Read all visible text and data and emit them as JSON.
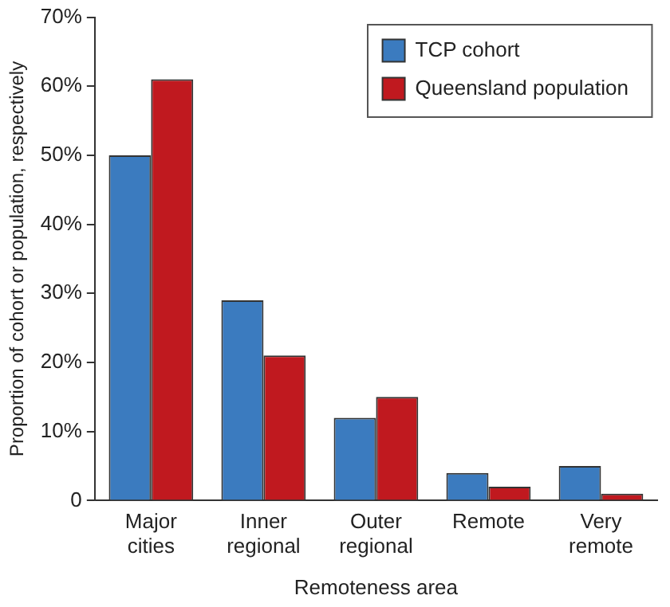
{
  "chart_data": {
    "type": "bar",
    "xlabel": "Remoteness area",
    "ylabel": "Proportion of cohort or population, respectively",
    "categories": [
      "Major cities",
      "Inner regional",
      "Outer regional",
      "Remote",
      "Very remote"
    ],
    "series": [
      {
        "name": "TCP cohort",
        "color": "#3b7bbf",
        "values": [
          50,
          29,
          12,
          4,
          5
        ]
      },
      {
        "name": "Queensland population",
        "color": "#c0191f",
        "values": [
          61,
          21,
          15,
          2,
          1
        ]
      }
    ],
    "ylim": [
      0,
      70
    ],
    "yticks": [
      0,
      {
        "value": 10,
        "label": "10%"
      },
      {
        "value": 20,
        "label": "20%"
      },
      {
        "value": 30,
        "label": "30%"
      },
      {
        "value": 40,
        "label": "40%"
      },
      {
        "value": 50,
        "label": "50%"
      },
      {
        "value": 60,
        "label": "60%"
      },
      {
        "value": 70,
        "label": "70%"
      }
    ],
    "grid": false,
    "legend": "top right"
  }
}
